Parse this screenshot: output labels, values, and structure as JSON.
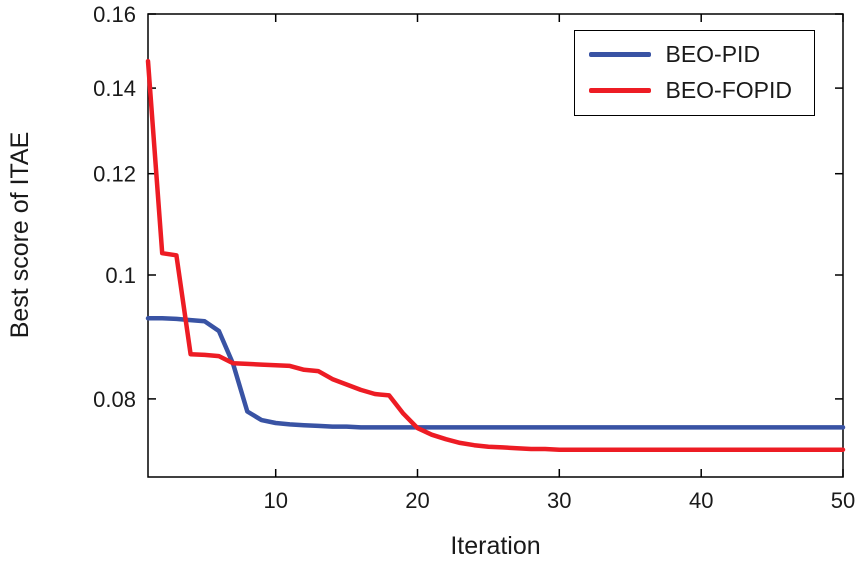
{
  "figure": {
    "background": "#ffffff",
    "axis_color": "#000000",
    "text_color": "#1a1a1a"
  },
  "chart_data": {
    "type": "line",
    "title": "",
    "xlabel": "Iteration",
    "ylabel": "Best score of ITAE",
    "x_range": [
      1,
      50
    ],
    "y_range": [
      0.0695,
      0.16
    ],
    "y_scale": "log",
    "grid": false,
    "legend_position": "top-right",
    "x_ticks": [
      10,
      20,
      30,
      40,
      50
    ],
    "x_tick_labels": [
      "10",
      "20",
      "30",
      "40",
      "50"
    ],
    "y_ticks": [
      0.08,
      0.1,
      0.12,
      0.14,
      0.16
    ],
    "y_tick_labels": [
      "0.08",
      "0.1",
      "0.12",
      "0.14",
      "0.16"
    ],
    "line_width": 4.5,
    "x": [
      1,
      2,
      3,
      4,
      5,
      6,
      7,
      8,
      9,
      10,
      11,
      12,
      13,
      14,
      15,
      16,
      17,
      18,
      19,
      20,
      21,
      22,
      23,
      24,
      25,
      26,
      27,
      28,
      29,
      30,
      31,
      32,
      33,
      34,
      35,
      36,
      37,
      38,
      39,
      40,
      41,
      42,
      43,
      44,
      45,
      46,
      47,
      48,
      49,
      50
    ],
    "series": [
      {
        "name": "BEO-PID",
        "color": "#3953a4",
        "values": [
          0.0925,
          0.0925,
          0.0924,
          0.0922,
          0.092,
          0.0904,
          0.0852,
          0.0782,
          0.077,
          0.0766,
          0.0764,
          0.0763,
          0.0762,
          0.0761,
          0.0761,
          0.076,
          0.076,
          0.076,
          0.076,
          0.076,
          0.076,
          0.076,
          0.076,
          0.076,
          0.076,
          0.076,
          0.076,
          0.076,
          0.076,
          0.076,
          0.076,
          0.076,
          0.076,
          0.076,
          0.076,
          0.076,
          0.076,
          0.076,
          0.076,
          0.076,
          0.076,
          0.076,
          0.076,
          0.076,
          0.076,
          0.076,
          0.076,
          0.076,
          0.076,
          0.076
        ]
      },
      {
        "name": "BEO-FOPID",
        "color": "#ed1c24",
        "values": [
          0.147,
          0.104,
          0.1036,
          0.0867,
          0.0866,
          0.0864,
          0.0853,
          0.0852,
          0.0851,
          0.085,
          0.0849,
          0.0843,
          0.0841,
          0.0829,
          0.0821,
          0.0813,
          0.0807,
          0.0805,
          0.0779,
          0.0759,
          0.075,
          0.0744,
          0.0739,
          0.0736,
          0.0734,
          0.0733,
          0.0732,
          0.0731,
          0.0731,
          0.073,
          0.073,
          0.073,
          0.073,
          0.073,
          0.073,
          0.073,
          0.073,
          0.073,
          0.073,
          0.073,
          0.073,
          0.073,
          0.073,
          0.073,
          0.073,
          0.073,
          0.073,
          0.073,
          0.073,
          0.073
        ]
      }
    ]
  }
}
